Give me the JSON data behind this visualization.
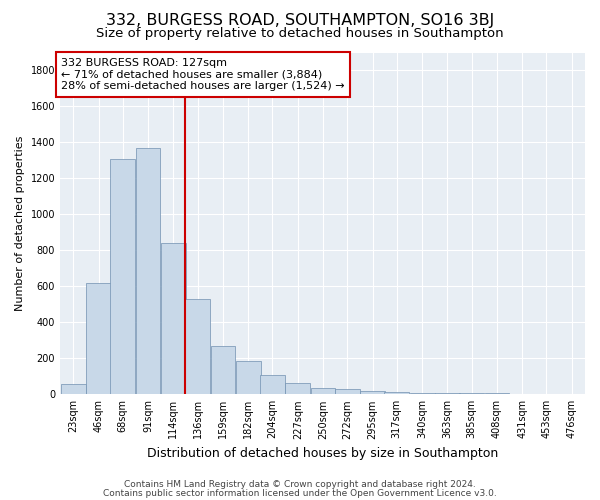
{
  "title": "332, BURGESS ROAD, SOUTHAMPTON, SO16 3BJ",
  "subtitle": "Size of property relative to detached houses in Southampton",
  "xlabel": "Distribution of detached houses by size in Southampton",
  "ylabel": "Number of detached properties",
  "footer_line1": "Contains HM Land Registry data © Crown copyright and database right 2024.",
  "footer_line2": "Contains public sector information licensed under the Open Government Licence v3.0.",
  "annotation_line1": "332 BURGESS ROAD: 127sqm",
  "annotation_line2": "← 71% of detached houses are smaller (3,884)",
  "annotation_line3": "28% of semi-detached houses are larger (1,524) →",
  "bar_color": "#c8d8e8",
  "bar_edge_color": "#7090b0",
  "marker_color": "#cc0000",
  "marker_x": 127,
  "background_color": "#e8eef4",
  "categories": [
    "23sqm",
    "46sqm",
    "68sqm",
    "91sqm",
    "114sqm",
    "136sqm",
    "159sqm",
    "182sqm",
    "204sqm",
    "227sqm",
    "250sqm",
    "272sqm",
    "295sqm",
    "317sqm",
    "340sqm",
    "363sqm",
    "385sqm",
    "408sqm",
    "431sqm",
    "453sqm",
    "476sqm"
  ],
  "bin_centers": [
    23,
    46,
    68,
    91,
    114,
    136,
    159,
    182,
    204,
    227,
    250,
    272,
    295,
    317,
    340,
    363,
    385,
    408,
    431,
    453,
    476
  ],
  "bin_width": 23,
  "values": [
    55,
    620,
    1310,
    1370,
    840,
    530,
    270,
    185,
    105,
    65,
    35,
    30,
    20,
    15,
    10,
    5,
    5,
    5,
    3,
    2,
    2
  ],
  "ylim": [
    0,
    1900
  ],
  "yticks": [
    0,
    200,
    400,
    600,
    800,
    1000,
    1200,
    1400,
    1600,
    1800
  ],
  "xlim_left": 11,
  "xlim_right": 488,
  "title_fontsize": 11.5,
  "subtitle_fontsize": 9.5,
  "xlabel_fontsize": 9,
  "ylabel_fontsize": 8,
  "tick_fontsize": 7,
  "annotation_fontsize": 8,
  "footer_fontsize": 6.5
}
